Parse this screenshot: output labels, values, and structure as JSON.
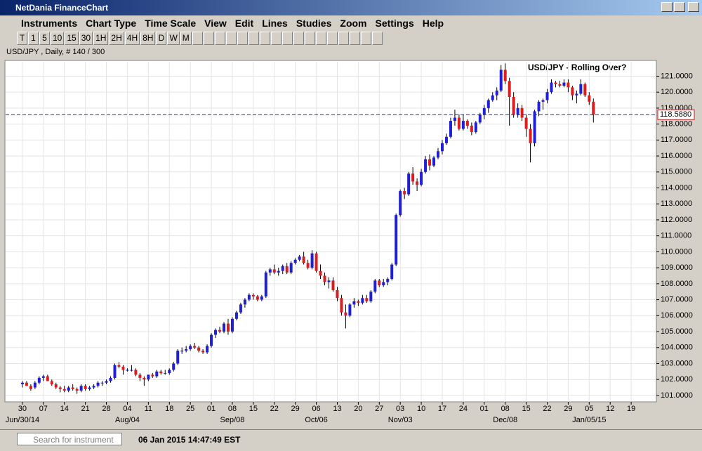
{
  "window": {
    "title": "NetDania FinanceChart",
    "menu": [
      "Instruments",
      "Chart Type",
      "Time Scale",
      "View",
      "Edit",
      "Lines",
      "Studies",
      "Zoom",
      "Settings",
      "Help"
    ],
    "timescale_buttons": [
      "T",
      "1",
      "5",
      "10",
      "15",
      "30",
      "1H",
      "2H",
      "4H",
      "8H",
      "D",
      "W",
      "M"
    ],
    "search_placeholder": "Search for instrument",
    "status_time": "06 Jan 2015 14:47:49 EST"
  },
  "chart_data": {
    "type": "candlestick",
    "instrument_label": "USD/JPY , Daily, # 140 / 300",
    "annotation": "USD/JPY - Rolling Over?",
    "up_color": "#1f1fd6",
    "down_color": "#d81e1e",
    "grid": true,
    "current": {
      "value": 118.588,
      "label": "118.5880"
    },
    "ylim": [
      100.6,
      121.9
    ],
    "yticks": [
      {
        "value": 101,
        "label": "101.0000"
      },
      {
        "value": 102,
        "label": "102.0000"
      },
      {
        "value": 103,
        "label": "103.0000"
      },
      {
        "value": 104,
        "label": "104.0000"
      },
      {
        "value": 105,
        "label": "105.0000"
      },
      {
        "value": 106,
        "label": "106.0000"
      },
      {
        "value": 107,
        "label": "107.0000"
      },
      {
        "value": 108,
        "label": "108.0000"
      },
      {
        "value": 109,
        "label": "109.0000"
      },
      {
        "value": 110,
        "label": "110.0000"
      },
      {
        "value": 111,
        "label": "111.0000"
      },
      {
        "value": 112,
        "label": "112.0000"
      },
      {
        "value": 113,
        "label": "113.0000"
      },
      {
        "value": 114,
        "label": "114.0000"
      },
      {
        "value": 115,
        "label": "115.0000"
      },
      {
        "value": 116,
        "label": "116.0000"
      },
      {
        "value": 117,
        "label": "117.0000"
      },
      {
        "value": 118,
        "label": "118.0000"
      },
      {
        "value": 119,
        "label": "119.0000"
      },
      {
        "value": 120,
        "label": "120.0000"
      },
      {
        "value": 121,
        "label": "121.0000"
      }
    ],
    "xlim": [
      -4,
      151
    ],
    "xticks": [
      {
        "value": 0,
        "label": "30"
      },
      {
        "value": 5,
        "label": "07"
      },
      {
        "value": 10,
        "label": "14"
      },
      {
        "value": 15,
        "label": "21"
      },
      {
        "value": 20,
        "label": "28"
      },
      {
        "value": 25,
        "label": "04"
      },
      {
        "value": 30,
        "label": "11"
      },
      {
        "value": 35,
        "label": "18"
      },
      {
        "value": 40,
        "label": "25"
      },
      {
        "value": 45,
        "label": "01"
      },
      {
        "value": 50,
        "label": "08"
      },
      {
        "value": 55,
        "label": "15"
      },
      {
        "value": 60,
        "label": "22"
      },
      {
        "value": 65,
        "label": "29"
      },
      {
        "value": 70,
        "label": "06"
      },
      {
        "value": 75,
        "label": "13"
      },
      {
        "value": 80,
        "label": "20"
      },
      {
        "value": 85,
        "label": "27"
      },
      {
        "value": 90,
        "label": "03"
      },
      {
        "value": 95,
        "label": "10"
      },
      {
        "value": 100,
        "label": "17"
      },
      {
        "value": 105,
        "label": "24"
      },
      {
        "value": 110,
        "label": "01"
      },
      {
        "value": 115,
        "label": "08"
      },
      {
        "value": 120,
        "label": "15"
      },
      {
        "value": 125,
        "label": "22"
      },
      {
        "value": 130,
        "label": "29"
      },
      {
        "value": 135,
        "label": "05"
      },
      {
        "value": 140,
        "label": "12"
      },
      {
        "value": 145,
        "label": "19"
      }
    ],
    "x_period_labels": [
      {
        "value": 0,
        "label": "Jun/30/14"
      },
      {
        "value": 25,
        "label": "Aug/04"
      },
      {
        "value": 50,
        "label": "Sep/08"
      },
      {
        "value": 70,
        "label": "Oct/06"
      },
      {
        "value": 90,
        "label": "Nov/03"
      },
      {
        "value": 115,
        "label": "Dec/08"
      },
      {
        "value": 135,
        "label": "Jan/05/15"
      }
    ],
    "candles": [
      [
        101.7,
        101.9,
        101.5,
        101.8
      ],
      [
        101.8,
        101.9,
        101.6,
        101.6
      ],
      [
        101.6,
        101.7,
        101.3,
        101.4
      ],
      [
        101.5,
        101.9,
        101.4,
        101.8
      ],
      [
        101.8,
        102.2,
        101.7,
        102.1
      ],
      [
        102.1,
        102.3,
        101.9,
        102.2
      ],
      [
        102.2,
        102.3,
        101.9,
        101.9
      ],
      [
        101.9,
        102.0,
        101.6,
        101.7
      ],
      [
        101.7,
        101.8,
        101.4,
        101.5
      ],
      [
        101.5,
        101.6,
        101.2,
        101.4
      ],
      [
        101.4,
        101.6,
        101.2,
        101.3
      ],
      [
        101.3,
        101.6,
        101.2,
        101.5
      ],
      [
        101.5,
        101.7,
        101.3,
        101.4
      ],
      [
        101.4,
        101.5,
        101.1,
        101.3
      ],
      [
        101.3,
        101.7,
        101.2,
        101.6
      ],
      [
        101.6,
        101.7,
        101.3,
        101.4
      ],
      [
        101.4,
        101.6,
        101.3,
        101.5
      ],
      [
        101.5,
        101.7,
        101.4,
        101.6
      ],
      [
        101.6,
        101.9,
        101.5,
        101.8
      ],
      [
        101.8,
        101.9,
        101.6,
        101.8
      ],
      [
        101.8,
        102.0,
        101.7,
        101.9
      ],
      [
        101.9,
        102.2,
        101.8,
        102.1
      ],
      [
        102.1,
        103.0,
        102.0,
        102.9
      ],
      [
        102.9,
        103.1,
        102.7,
        102.8
      ],
      [
        102.8,
        102.9,
        102.3,
        102.6
      ],
      [
        102.6,
        102.7,
        102.5,
        102.6
      ],
      [
        102.6,
        102.9,
        102.5,
        102.6
      ],
      [
        102.6,
        102.7,
        102.2,
        102.3
      ],
      [
        102.3,
        102.4,
        101.9,
        102.1
      ],
      [
        102.1,
        102.2,
        101.6,
        102.0
      ],
      [
        102.0,
        102.3,
        101.9,
        102.3
      ],
      [
        102.3,
        102.4,
        102.1,
        102.2
      ],
      [
        102.2,
        102.6,
        102.1,
        102.5
      ],
      [
        102.5,
        102.6,
        102.3,
        102.4
      ],
      [
        102.4,
        102.6,
        102.3,
        102.4
      ],
      [
        102.4,
        102.7,
        102.3,
        102.6
      ],
      [
        102.6,
        103.1,
        102.5,
        103.0
      ],
      [
        103.0,
        103.9,
        102.9,
        103.8
      ],
      [
        103.8,
        104.0,
        103.6,
        103.8
      ],
      [
        103.8,
        104.1,
        103.7,
        103.9
      ],
      [
        103.9,
        104.2,
        103.8,
        104.1
      ],
      [
        104.1,
        104.3,
        103.9,
        104.0
      ],
      [
        104.0,
        104.1,
        103.7,
        103.8
      ],
      [
        103.8,
        103.9,
        103.6,
        103.7
      ],
      [
        103.7,
        104.2,
        103.6,
        104.1
      ],
      [
        104.1,
        104.9,
        104.0,
        104.8
      ],
      [
        104.8,
        105.2,
        104.6,
        105.1
      ],
      [
        105.1,
        105.3,
        104.9,
        105.0
      ],
      [
        105.0,
        105.6,
        104.9,
        105.5
      ],
      [
        105.5,
        105.8,
        104.8,
        105.0
      ],
      [
        105.0,
        105.9,
        104.9,
        105.8
      ],
      [
        105.8,
        106.3,
        105.7,
        106.2
      ],
      [
        106.2,
        106.8,
        106.1,
        106.7
      ],
      [
        106.7,
        107.1,
        106.5,
        107.0
      ],
      [
        107.0,
        107.4,
        106.9,
        107.3
      ],
      [
        107.3,
        107.4,
        107.0,
        107.2
      ],
      [
        107.2,
        107.3,
        106.9,
        107.0
      ],
      [
        107.0,
        107.3,
        106.9,
        107.2
      ],
      [
        107.2,
        108.8,
        107.1,
        108.7
      ],
      [
        108.7,
        109.0,
        108.5,
        108.9
      ],
      [
        108.9,
        109.2,
        108.6,
        108.7
      ],
      [
        108.7,
        109.0,
        108.5,
        108.8
      ],
      [
        108.8,
        109.2,
        108.6,
        109.1
      ],
      [
        109.1,
        109.3,
        108.6,
        108.7
      ],
      [
        108.7,
        109.4,
        108.6,
        109.3
      ],
      [
        109.3,
        109.6,
        109.2,
        109.5
      ],
      [
        109.5,
        109.8,
        109.4,
        109.7
      ],
      [
        109.7,
        110.0,
        109.2,
        109.3
      ],
      [
        109.3,
        109.5,
        108.9,
        109.0
      ],
      [
        109.0,
        110.1,
        108.9,
        109.9
      ],
      [
        109.9,
        110.0,
        108.7,
        108.8
      ],
      [
        108.8,
        109.2,
        108.3,
        108.5
      ],
      [
        108.5,
        108.7,
        107.9,
        108.1
      ],
      [
        108.1,
        108.4,
        107.7,
        108.2
      ],
      [
        108.2,
        108.4,
        107.5,
        107.6
      ],
      [
        107.6,
        107.8,
        106.9,
        107.1
      ],
      [
        107.1,
        107.3,
        106.0,
        106.2
      ],
      [
        106.2,
        106.7,
        105.2,
        106.0
      ],
      [
        106.0,
        106.8,
        105.9,
        106.7
      ],
      [
        106.7,
        107.1,
        106.5,
        106.9
      ],
      [
        106.9,
        107.0,
        106.6,
        106.8
      ],
      [
        106.8,
        107.3,
        106.7,
        107.1
      ],
      [
        107.1,
        107.3,
        106.8,
        106.9
      ],
      [
        106.9,
        107.6,
        106.8,
        107.5
      ],
      [
        107.5,
        108.3,
        107.4,
        108.2
      ],
      [
        108.2,
        108.3,
        107.8,
        107.9
      ],
      [
        107.9,
        108.3,
        107.8,
        108.1
      ],
      [
        108.1,
        108.4,
        107.9,
        108.3
      ],
      [
        108.3,
        109.3,
        108.2,
        109.2
      ],
      [
        109.2,
        112.4,
        109.1,
        112.3
      ],
      [
        112.3,
        113.9,
        112.2,
        113.8
      ],
      [
        113.8,
        114.0,
        113.3,
        113.6
      ],
      [
        113.6,
        115.0,
        113.5,
        114.9
      ],
      [
        114.9,
        115.3,
        114.2,
        114.4
      ],
      [
        114.4,
        114.6,
        113.8,
        114.2
      ],
      [
        114.2,
        115.2,
        114.1,
        115.0
      ],
      [
        115.0,
        116.0,
        114.9,
        115.8
      ],
      [
        115.8,
        116.1,
        115.1,
        115.4
      ],
      [
        115.4,
        116.0,
        115.3,
        115.9
      ],
      [
        115.9,
        116.5,
        115.8,
        116.3
      ],
      [
        116.3,
        117.0,
        116.1,
        116.8
      ],
      [
        116.8,
        117.4,
        116.7,
        117.2
      ],
      [
        117.2,
        118.4,
        117.1,
        118.2
      ],
      [
        118.2,
        118.9,
        117.9,
        118.4
      ],
      [
        118.4,
        118.6,
        117.6,
        117.7
      ],
      [
        117.7,
        118.6,
        117.6,
        118.2
      ],
      [
        118.2,
        118.3,
        117.7,
        117.9
      ],
      [
        117.9,
        118.1,
        117.3,
        117.5
      ],
      [
        117.5,
        118.2,
        117.4,
        118.1
      ],
      [
        118.1,
        118.7,
        118.0,
        118.6
      ],
      [
        118.6,
        119.2,
        118.3,
        119.0
      ],
      [
        119.0,
        119.6,
        118.7,
        119.5
      ],
      [
        119.5,
        120.0,
        119.4,
        119.8
      ],
      [
        119.8,
        120.3,
        119.5,
        120.1
      ],
      [
        120.1,
        121.7,
        120.0,
        121.4
      ],
      [
        121.4,
        121.8,
        120.5,
        120.7
      ],
      [
        120.7,
        120.9,
        117.9,
        119.7
      ],
      [
        119.7,
        120.0,
        118.4,
        118.6
      ],
      [
        118.6,
        119.3,
        118.4,
        119.0
      ],
      [
        119.0,
        119.2,
        118.2,
        118.4
      ],
      [
        118.4,
        118.6,
        117.2,
        117.7
      ],
      [
        117.7,
        118.0,
        115.6,
        116.8
      ],
      [
        116.8,
        118.9,
        116.6,
        118.8
      ],
      [
        118.8,
        119.5,
        118.5,
        119.4
      ],
      [
        119.4,
        119.6,
        118.9,
        119.5
      ],
      [
        119.5,
        120.2,
        119.3,
        120.0
      ],
      [
        120.0,
        120.8,
        119.9,
        120.6
      ],
      [
        120.6,
        120.7,
        120.3,
        120.5
      ],
      [
        120.5,
        120.7,
        120.3,
        120.4
      ],
      [
        120.4,
        120.8,
        120.3,
        120.6
      ],
      [
        120.6,
        120.8,
        120.0,
        120.3
      ],
      [
        120.3,
        120.4,
        119.5,
        119.8
      ],
      [
        119.8,
        120.1,
        119.3,
        119.9
      ],
      [
        119.9,
        120.8,
        119.8,
        120.5
      ],
      [
        120.5,
        120.6,
        119.7,
        119.8
      ],
      [
        119.8,
        120.0,
        119.2,
        119.4
      ],
      [
        119.4,
        119.6,
        118.1,
        118.6
      ]
    ]
  }
}
